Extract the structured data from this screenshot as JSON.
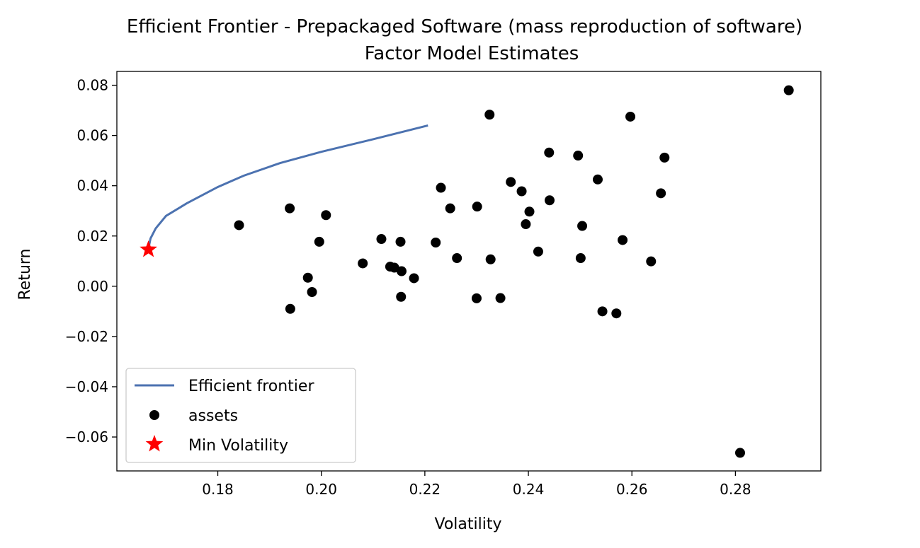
{
  "chart_data": {
    "type": "scatter",
    "title": "Efficient Frontier - Prepackaged Software (mass reproduction of software)",
    "subtitle": "Factor Model Estimates",
    "xlabel": "Volatility",
    "ylabel": "Return",
    "xlim": [
      0.1605,
      0.2965
    ],
    "ylim": [
      -0.0735,
      0.0855
    ],
    "xticks": [
      0.18,
      0.2,
      0.22,
      0.24,
      0.26,
      0.28
    ],
    "xtick_labels": [
      "0.18",
      "0.20",
      "0.22",
      "0.24",
      "0.26",
      "0.28"
    ],
    "yticks": [
      0.08,
      0.06,
      0.04,
      0.02,
      0.0,
      -0.02,
      -0.04,
      -0.06
    ],
    "ytick_labels": [
      "0.08",
      "0.06",
      "0.04",
      "0.02",
      "0.00",
      "−0.02",
      "−0.04",
      "−0.06"
    ],
    "grid": false,
    "legend_position": "lower-left",
    "colors": {
      "frontier": "#4c72b0",
      "assets": "#000000",
      "min_vol": "#ff0000"
    },
    "series": [
      {
        "name": "Efficient frontier",
        "kind": "line",
        "x": [
          0.1666,
          0.167,
          0.168,
          0.17,
          0.174,
          0.18,
          0.185,
          0.192,
          0.2,
          0.21,
          0.2206
        ],
        "y": [
          0.015,
          0.019,
          0.023,
          0.028,
          0.033,
          0.0395,
          0.044,
          0.049,
          0.0535,
          0.0585,
          0.064
        ]
      },
      {
        "name": "assets",
        "kind": "scatter",
        "points": [
          [
            0.2903,
            0.078
          ],
          [
            0.2325,
            0.0683
          ],
          [
            0.2597,
            0.0675
          ],
          [
            0.244,
            0.0532
          ],
          [
            0.2496,
            0.052
          ],
          [
            0.2663,
            0.0512
          ],
          [
            0.2534,
            0.0425
          ],
          [
            0.2366,
            0.0415
          ],
          [
            0.2231,
            0.0392
          ],
          [
            0.2387,
            0.0378
          ],
          [
            0.2656,
            0.037
          ],
          [
            0.2441,
            0.0342
          ],
          [
            0.2249,
            0.031
          ],
          [
            0.2301,
            0.0317
          ],
          [
            0.1939,
            0.031
          ],
          [
            0.2402,
            0.0297
          ],
          [
            0.2009,
            0.0283
          ],
          [
            0.1841,
            0.0243
          ],
          [
            0.2395,
            0.0247
          ],
          [
            0.2504,
            0.024
          ],
          [
            0.2116,
            0.0188
          ],
          [
            0.2582,
            0.0184
          ],
          [
            0.1996,
            0.0177
          ],
          [
            0.2153,
            0.0177
          ],
          [
            0.2221,
            0.0174
          ],
          [
            0.2419,
            0.0138
          ],
          [
            0.2262,
            0.0112
          ],
          [
            0.2327,
            0.0107
          ],
          [
            0.2501,
            0.0112
          ],
          [
            0.2637,
            0.0099
          ],
          [
            0.208,
            0.0091
          ],
          [
            0.2133,
            0.0078
          ],
          [
            0.2141,
            0.0074
          ],
          [
            0.2155,
            0.006
          ],
          [
            0.1974,
            0.0034
          ],
          [
            0.2179,
            0.0032
          ],
          [
            0.1982,
            -0.0023
          ],
          [
            0.2154,
            -0.0042
          ],
          [
            0.23,
            -0.0048
          ],
          [
            0.2346,
            -0.0047
          ],
          [
            0.194,
            -0.009
          ],
          [
            0.2543,
            -0.01
          ],
          [
            0.257,
            -0.0108
          ],
          [
            0.2809,
            -0.0663
          ]
        ]
      },
      {
        "name": "Min Volatility",
        "kind": "marker",
        "x": 0.1666,
        "y": 0.0146
      }
    ]
  }
}
